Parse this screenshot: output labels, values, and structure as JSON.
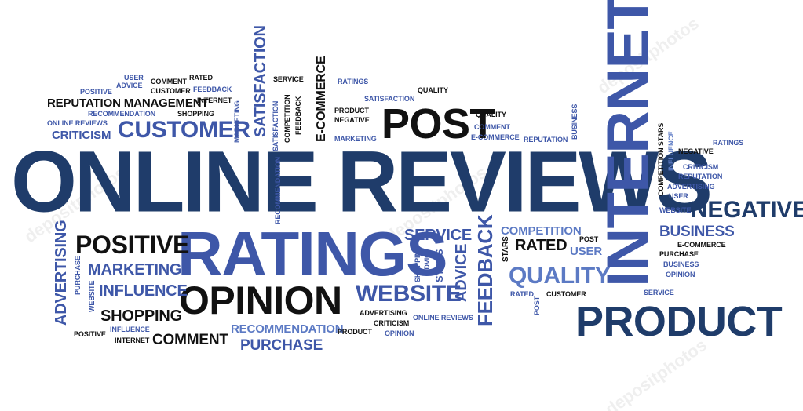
{
  "colors": {
    "dark_navy": "#1f3c6a",
    "navy": "#243f73",
    "blue": "#3e57a8",
    "light_blue": "#5c7ac4",
    "black": "#111111"
  },
  "watermark": "depositphotos",
  "words": {
    "online_reviews": "ONLINE REVIEWS",
    "ratings_big": "RATINGS",
    "internet_big": "INTERNET",
    "product_big": "PRODUCT",
    "post_big": "POST",
    "opinion_big": "OPINION",
    "customer_big": "CUSTOMER",
    "positive_big": "POSITIVE",
    "negative_big": "NEGATIVE",
    "website_big": "WEBSITE",
    "quality_big": "QUALITY",
    "feedback_big": "FEEDBACK",
    "service_big": "SERVICE",
    "business_big": "BUSINESS",
    "reputation_management": "REPUTATION MANAGEMENT",
    "marketing_big": "MARKETING",
    "influence_big": "INFLUENCE",
    "shopping_big": "SHOPPING",
    "comment_big": "COMMENT",
    "purchase_big": "PURCHASE",
    "recommendation_big": "RECOMMENDATION",
    "criticism_big": "CRITICISM",
    "competition_big": "COMPETITION",
    "rated_big": "RATED",
    "user_big": "USER",
    "advertising_v": "ADVERTISING",
    "satisfaction_v": "SATISFACTION",
    "ecommerce_v": "E-COMMERCE",
    "advice_v": "ADVICE",
    "stars_v": "STARS",
    "shopping_v": "SHOPPING",
    "purchase_v": "PURCHASE",
    "website_v": "WEBSITE",
    "marketing_v": "MARKETING",
    "recommendation_v": "RECOMMENDATION",
    "satisfaction_v2": "SATISFACTION",
    "competition_v": "COMPETITION",
    "feedback_v": "FEEDBACK",
    "business_v": "BUSINESS",
    "competition_stars_v": "COMPETITION STARS",
    "influence_v": "INFLUENCE",
    "stars_v2": "STARS",
    "post_v": "POST",
    "user_s": "USER",
    "advice_s": "ADVICE",
    "positive_s": "POSITIVE",
    "customer_s": "CUSTOMER",
    "comment_s": "COMMENT",
    "rated_s": "RATED",
    "feedback_s": "FEEDBACK",
    "internet_s": "INTERNET",
    "recommendation_s": "RECOMMENDATION",
    "shopping_s": "SHOPPING",
    "online_reviews_s": "ONLINE REVIEWS",
    "service_s": "SERVICE",
    "ratings_s": "RATINGS",
    "quality_s": "QUALITY",
    "satisfaction_s": "SATISFACTION",
    "product_s": "PRODUCT",
    "negative_s": "NEGATIVE",
    "marketing_s": "MARKETING",
    "quality_s2": "QUALITY",
    "comment_s2": "COMMENT",
    "ecommerce_s": "E-COMMERCE",
    "reputation_s": "REPUTATION",
    "negative_s2": "NEGATIVE",
    "ratings_s2": "RATINGS",
    "criticism_s": "CRITICISM",
    "reputation_s2": "REPUTATION",
    "advertising_s": "ADVERTISING",
    "user_s2": "USER",
    "website_s": "WEBSITE",
    "post_s": "POST",
    "ecommerce_s2": "E-COMMERCE",
    "purchase_s": "PURCHASE",
    "business_s": "BUSINESS",
    "opinion_s": "OPINION",
    "service_s2": "SERVICE",
    "rated_s2": "RATED",
    "customer_s2": "CUSTOMER",
    "advertising_s2": "ADVERTISING",
    "criticism_s2": "CRITICISM",
    "online_reviews_s2": "ONLINE REVIEWS",
    "product_s2": "PRODUCT",
    "opinion_s2": "OPINION",
    "positive_s2": "POSITIVE",
    "influence_s": "INFLUENCE",
    "internet_s2": "INTERNET",
    "recommendation_s2": "RECOMMENDATION"
  }
}
